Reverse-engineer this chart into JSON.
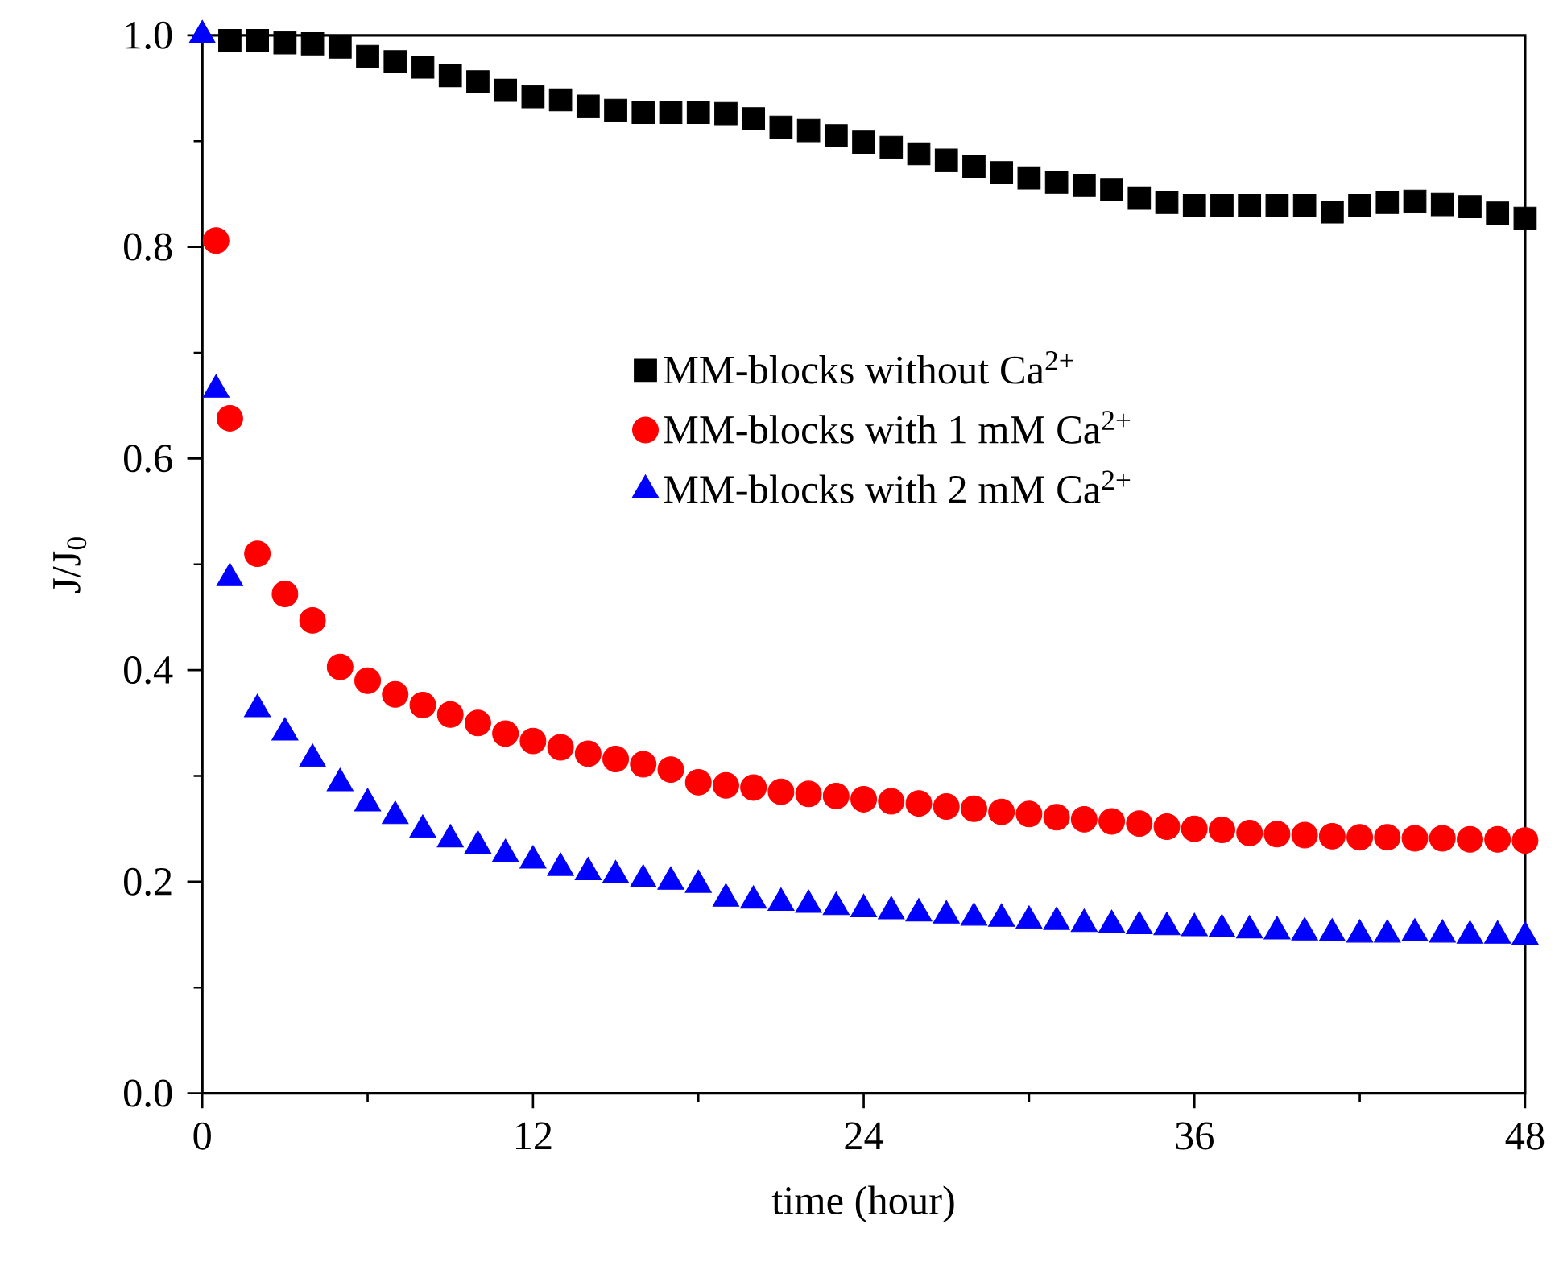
{
  "chart_data": {
    "type": "scatter",
    "xlabel": "time (hour)",
    "ylabel": "J/J$_{0}$",
    "xlim": [
      0,
      48
    ],
    "ylim": [
      0,
      1.0
    ],
    "xticks": [
      0,
      12,
      24,
      36,
      48
    ],
    "yticks": [
      {
        "value": 0,
        "label": "0.0"
      },
      {
        "value": 0.2,
        "label": "0.2"
      },
      {
        "value": 0.4,
        "label": "0.4"
      },
      {
        "value": 0.6,
        "label": "0.6"
      },
      {
        "value": 0.8,
        "label": "0.8"
      },
      {
        "value": 1.0,
        "label": "1.0"
      }
    ],
    "legend": "right",
    "grid": false,
    "series": [
      {
        "name": "MM-blocks without Ca$^{2+}$",
        "color": "#000000",
        "marker": "square",
        "x": [
          1,
          2,
          3,
          4,
          5,
          6,
          7,
          8,
          9,
          10,
          11,
          12,
          13,
          14,
          15,
          16,
          17,
          18,
          19,
          20,
          21,
          22,
          23,
          24,
          25,
          26,
          27,
          28,
          29,
          30,
          31,
          32,
          33,
          34,
          35,
          36,
          37,
          38,
          39,
          40,
          41,
          42,
          43,
          44,
          45,
          46,
          47,
          48
        ],
        "values": [
          0.995,
          0.995,
          0.993,
          0.992,
          0.989,
          0.98,
          0.975,
          0.97,
          0.962,
          0.956,
          0.948,
          0.942,
          0.939,
          0.933,
          0.929,
          0.927,
          0.927,
          0.927,
          0.926,
          0.921,
          0.913,
          0.91,
          0.905,
          0.899,
          0.894,
          0.888,
          0.882,
          0.876,
          0.87,
          0.865,
          0.861,
          0.858,
          0.854,
          0.846,
          0.842,
          0.839,
          0.839,
          0.839,
          0.839,
          0.839,
          0.833,
          0.839,
          0.842,
          0.843,
          0.84,
          0.838,
          0.832,
          0.827
        ]
      },
      {
        "name": "MM-blocks with 1 mM Ca$^{2+}$",
        "color": "#ff0000",
        "marker": "circle",
        "x": [
          0.5,
          1,
          2,
          3,
          4,
          5,
          6,
          7,
          8,
          9,
          10,
          11,
          12,
          13,
          14,
          15,
          16,
          17,
          18,
          19,
          20,
          21,
          22,
          23,
          24,
          25,
          26,
          27,
          28,
          29,
          30,
          31,
          32,
          33,
          34,
          35,
          36,
          37,
          38,
          39,
          40,
          41,
          42,
          43,
          44,
          45,
          46,
          47,
          48
        ],
        "values": [
          0.806,
          0.638,
          0.51,
          0.472,
          0.447,
          0.403,
          0.39,
          0.377,
          0.367,
          0.358,
          0.35,
          0.34,
          0.333,
          0.327,
          0.321,
          0.316,
          0.311,
          0.306,
          0.294,
          0.291,
          0.289,
          0.285,
          0.283,
          0.281,
          0.278,
          0.276,
          0.274,
          0.271,
          0.269,
          0.266,
          0.264,
          0.261,
          0.259,
          0.257,
          0.255,
          0.252,
          0.25,
          0.249,
          0.246,
          0.245,
          0.244,
          0.243,
          0.242,
          0.242,
          0.241,
          0.241,
          0.24,
          0.24,
          0.239
        ]
      },
      {
        "name": "MM-blocks with 2 mM Ca$^{2+}$",
        "color": "#0000ff",
        "marker": "triangle",
        "x": [
          0,
          0.5,
          1,
          2,
          3,
          4,
          5,
          6,
          7,
          8,
          9,
          10,
          11,
          12,
          13,
          14,
          15,
          16,
          17,
          18,
          19,
          20,
          21,
          22,
          23,
          24,
          25,
          26,
          27,
          28,
          29,
          30,
          31,
          32,
          33,
          34,
          35,
          36,
          37,
          38,
          39,
          40,
          41,
          42,
          43,
          44,
          45,
          46,
          47,
          48
        ],
        "values": [
          1.0,
          0.665,
          0.487,
          0.363,
          0.341,
          0.316,
          0.293,
          0.274,
          0.262,
          0.249,
          0.24,
          0.234,
          0.226,
          0.22,
          0.213,
          0.209,
          0.206,
          0.202,
          0.2,
          0.197,
          0.184,
          0.182,
          0.18,
          0.178,
          0.176,
          0.174,
          0.172,
          0.17,
          0.168,
          0.166,
          0.165,
          0.163,
          0.162,
          0.16,
          0.159,
          0.158,
          0.157,
          0.156,
          0.155,
          0.154,
          0.153,
          0.152,
          0.151,
          0.15,
          0.15,
          0.151,
          0.15,
          0.149,
          0.149,
          0.148
        ]
      }
    ]
  }
}
